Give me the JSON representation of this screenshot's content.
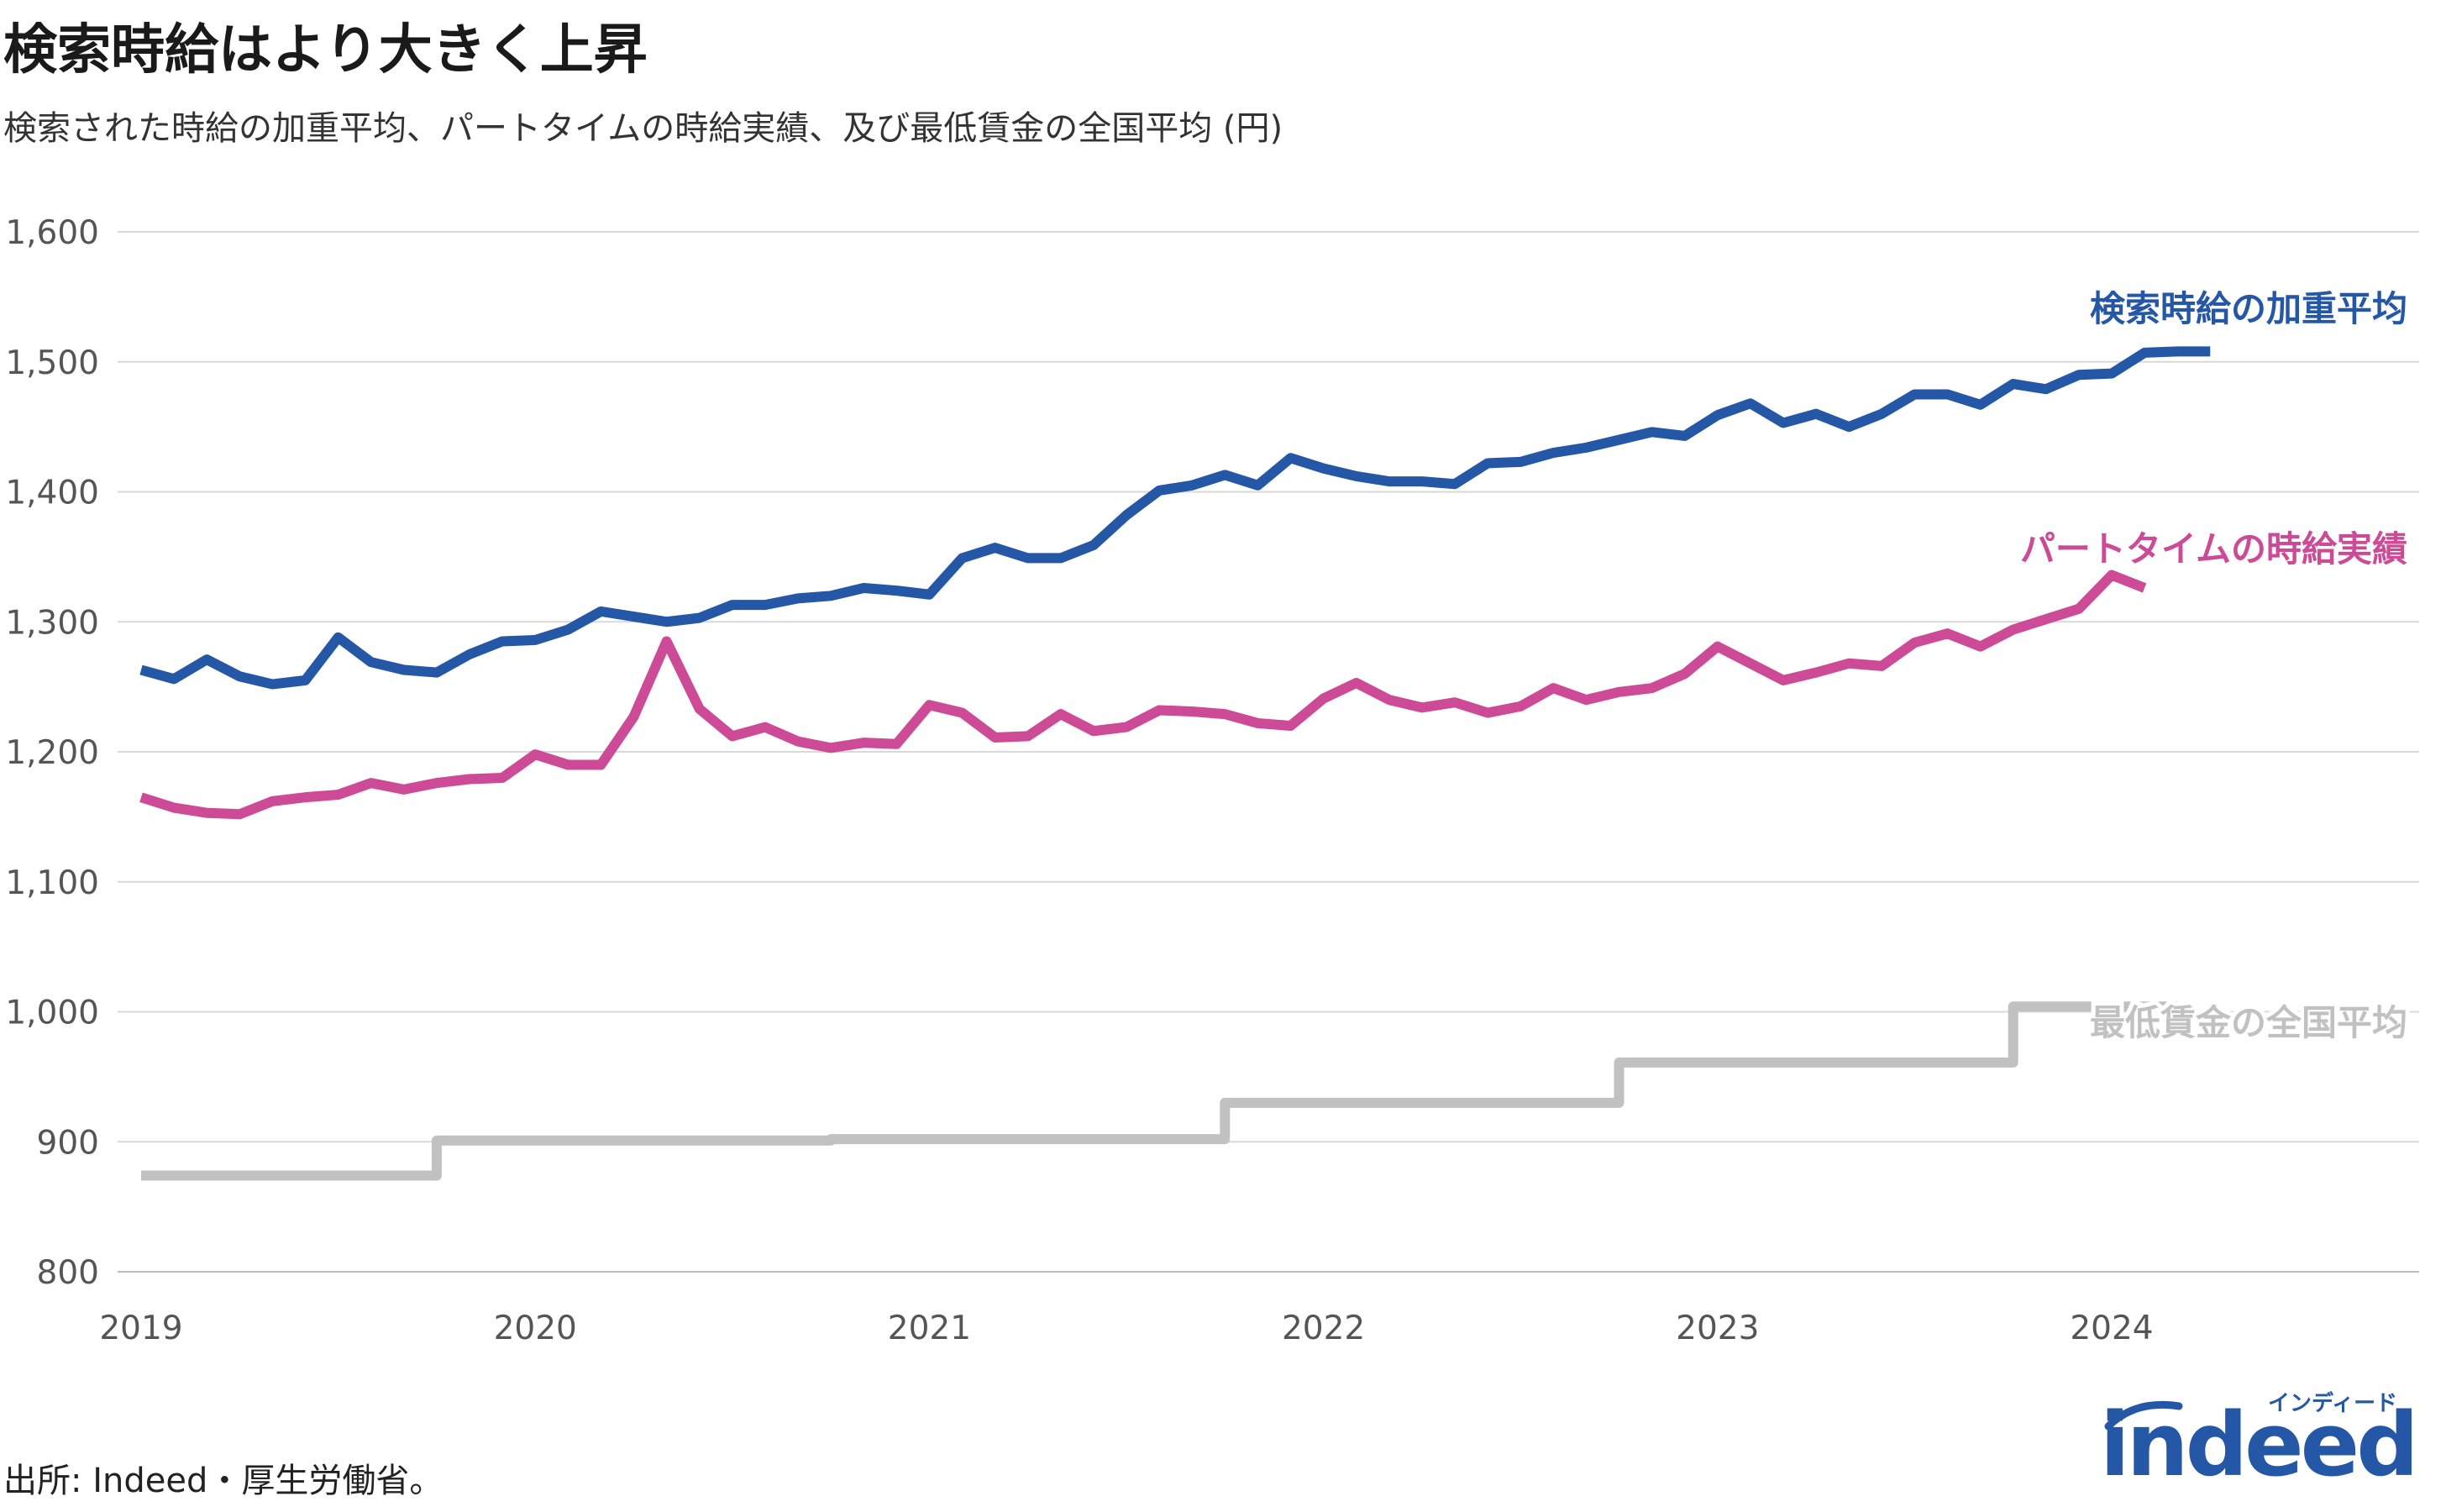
{
  "title": "検索時給はより大きく上昇",
  "subtitle": "検索された時給の加重平均、パートタイムの時給実績、及び最低賃金の全国平均 (円)",
  "source": "出所: Indeed・厚生労働省。",
  "logo": {
    "word": "indeed",
    "kana": "インディード"
  },
  "chart_data": {
    "type": "line",
    "title": "検索時給はより大きく上昇",
    "subtitle": "検索された時給の加重平均、パートタイムの時給実績、及び最低賃金の全国平均 (円)",
    "xlabel": "",
    "ylabel": "",
    "ylim": [
      800,
      1600
    ],
    "yticks": [
      800,
      900,
      1000,
      1100,
      1200,
      1300,
      1400,
      1500,
      1600
    ],
    "ytick_labels": [
      "800",
      "900",
      "1,000",
      "1,100",
      "1,200",
      "1,300",
      "1,400",
      "1,500",
      "1,600"
    ],
    "xlim": [
      "2019-01",
      "2024-10"
    ],
    "xticks": [
      "2019-01",
      "2020-01",
      "2021-01",
      "2022-01",
      "2023-01",
      "2024-01"
    ],
    "xtick_labels": [
      "2019",
      "2020",
      "2021",
      "2022",
      "2023",
      "2024"
    ],
    "grid": true,
    "legend": "direct labels at line ends (right)",
    "series": [
      {
        "name": "検索時給の加重平均",
        "color": "#2557a7",
        "x": [
          "2019-01",
          "2019-02",
          "2019-03",
          "2019-04",
          "2019-05",
          "2019-06",
          "2019-07",
          "2019-08",
          "2019-09",
          "2019-10",
          "2019-11",
          "2019-12",
          "2020-01",
          "2020-02",
          "2020-03",
          "2020-04",
          "2020-05",
          "2020-06",
          "2020-07",
          "2020-08",
          "2020-09",
          "2020-10",
          "2020-11",
          "2020-12",
          "2021-01",
          "2021-02",
          "2021-03",
          "2021-04",
          "2021-05",
          "2021-06",
          "2021-07",
          "2021-08",
          "2021-09",
          "2021-10",
          "2021-11",
          "2021-12",
          "2022-01",
          "2022-02",
          "2022-03",
          "2022-04",
          "2022-05",
          "2022-06",
          "2022-07",
          "2022-08",
          "2022-09",
          "2022-10",
          "2022-11",
          "2022-12",
          "2023-01",
          "2023-02",
          "2023-03",
          "2023-04",
          "2023-05",
          "2023-06",
          "2023-07",
          "2023-08",
          "2023-09",
          "2023-10",
          "2023-11",
          "2023-12",
          "2024-01",
          "2024-02",
          "2024-03",
          "2024-04"
        ],
        "values": [
          1263,
          1256,
          1271,
          1258,
          1252,
          1255,
          1288,
          1269,
          1263,
          1261,
          1275,
          1285,
          1286,
          1294,
          1308,
          1304,
          1300,
          1303,
          1313,
          1313,
          1318,
          1320,
          1326,
          1324,
          1321,
          1349,
          1357,
          1349,
          1349,
          1359,
          1382,
          1401,
          1405,
          1413,
          1405,
          1426,
          1418,
          1412,
          1408,
          1408,
          1406,
          1422,
          1423,
          1430,
          1434,
          1440,
          1446,
          1443,
          1459,
          1468,
          1453,
          1460,
          1450,
          1460,
          1475,
          1475,
          1467,
          1483,
          1479,
          1490,
          1491,
          1507,
          1508,
          1508
        ]
      },
      {
        "name": "パートタイムの時給実績",
        "color": "#cc4a96",
        "x": [
          "2019-01",
          "2019-02",
          "2019-03",
          "2019-04",
          "2019-05",
          "2019-06",
          "2019-07",
          "2019-08",
          "2019-09",
          "2019-10",
          "2019-11",
          "2019-12",
          "2020-01",
          "2020-02",
          "2020-03",
          "2020-04",
          "2020-05",
          "2020-06",
          "2020-07",
          "2020-08",
          "2020-09",
          "2020-10",
          "2020-11",
          "2020-12",
          "2021-01",
          "2021-02",
          "2021-03",
          "2021-04",
          "2021-05",
          "2021-06",
          "2021-07",
          "2021-08",
          "2021-09",
          "2021-10",
          "2021-11",
          "2021-12",
          "2022-01",
          "2022-02",
          "2022-03",
          "2022-04",
          "2022-05",
          "2022-06",
          "2022-07",
          "2022-08",
          "2022-09",
          "2022-10",
          "2022-11",
          "2022-12",
          "2023-01",
          "2023-02",
          "2023-03",
          "2023-04",
          "2023-05",
          "2023-06",
          "2023-07",
          "2023-08",
          "2023-09",
          "2023-10",
          "2023-11",
          "2023-12",
          "2024-01",
          "2024-02"
        ],
        "values": [
          1165,
          1157,
          1153,
          1152,
          1162,
          1165,
          1167,
          1176,
          1171,
          1176,
          1179,
          1180,
          1198,
          1190,
          1190,
          1227,
          1285,
          1233,
          1212,
          1219,
          1208,
          1203,
          1207,
          1206,
          1236,
          1230,
          1211,
          1212,
          1229,
          1216,
          1219,
          1232,
          1231,
          1229,
          1222,
          1220,
          1241,
          1253,
          1240,
          1234,
          1238,
          1230,
          1235,
          1249,
          1240,
          1246,
          1249,
          1260,
          1281,
          1268,
          1255,
          1261,
          1268,
          1266,
          1284,
          1291,
          1281,
          1294,
          1302,
          1310,
          1336,
          1326
        ]
      },
      {
        "name": "最低賃金の全国平均",
        "color": "#c1c1c1",
        "step": true,
        "x": [
          "2019-01",
          "2019-10",
          "2020-10",
          "2021-10",
          "2022-10",
          "2023-10",
          "2024-03"
        ],
        "values": [
          874,
          901,
          902,
          930,
          961,
          1004,
          1004
        ]
      }
    ]
  }
}
